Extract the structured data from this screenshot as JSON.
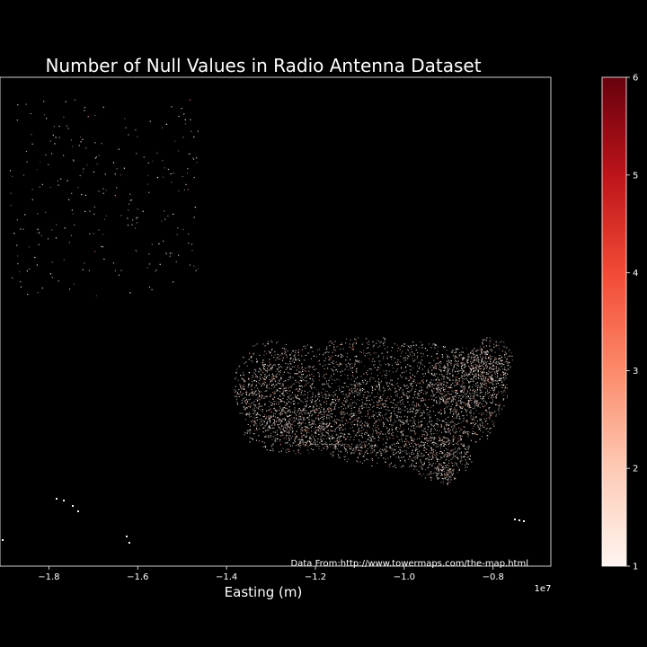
{
  "chart_data": {
    "type": "scatter",
    "title": "Number of Null Values in Radio Antenna Dataset",
    "xlabel": "Easting (m)",
    "ylabel": "",
    "x_offset_label": "1e7",
    "xlim": [
      -1.91,
      -0.67
    ],
    "x_ticks": [
      -1.8,
      -1.6,
      -1.4,
      -1.2,
      -1.0,
      -0.8
    ],
    "x_tick_labels": [
      "−1.8",
      "−1.6",
      "−1.4",
      "−1.2",
      "−1.0",
      "−0.8"
    ],
    "source_annotation": "Data From:http://www.towermaps.com/the-map.html",
    "background": "#000000",
    "colorbar": {
      "cmap": "Reds",
      "range": [
        1,
        6
      ],
      "ticks": [
        1,
        2,
        3,
        4,
        5,
        6
      ],
      "tick_labels": [
        "1",
        "2",
        "3",
        "4",
        "5",
        "6"
      ],
      "colors": [
        "#fff5f0",
        "#fdcab5",
        "#fc8a6a",
        "#f24a35",
        "#bc141a",
        "#67000d"
      ]
    },
    "grid": false,
    "legend": "none"
  }
}
